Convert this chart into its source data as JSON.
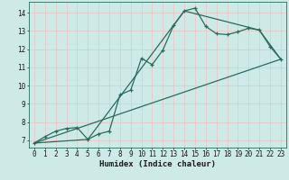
{
  "xlabel": "Humidex (Indice chaleur)",
  "bg_color": "#cdeae7",
  "grid_color_h": "#e8c8c8",
  "grid_color_v": "#e8c8c8",
  "line_color": "#2a6b5e",
  "xlim": [
    -0.5,
    23.5
  ],
  "ylim": [
    6.6,
    14.6
  ],
  "xticks": [
    0,
    1,
    2,
    3,
    4,
    5,
    6,
    7,
    8,
    9,
    10,
    11,
    12,
    13,
    14,
    15,
    16,
    17,
    18,
    19,
    20,
    21,
    22,
    23
  ],
  "yticks": [
    7,
    8,
    9,
    10,
    11,
    12,
    13,
    14
  ],
  "line1_x": [
    0,
    1,
    2,
    3,
    4,
    5,
    6,
    7,
    8,
    9,
    10,
    11,
    12,
    13,
    14,
    15,
    16,
    17,
    18,
    19,
    20,
    21,
    22,
    23
  ],
  "line1_y": [
    6.85,
    7.2,
    7.5,
    7.65,
    7.7,
    7.05,
    7.35,
    7.5,
    9.5,
    9.75,
    11.5,
    11.15,
    11.95,
    13.3,
    14.1,
    14.25,
    13.25,
    12.85,
    12.8,
    12.95,
    13.15,
    13.05,
    12.15,
    11.45
  ],
  "line2_x": [
    0,
    5,
    14,
    21,
    23
  ],
  "line2_y": [
    6.85,
    7.05,
    14.1,
    13.05,
    11.45
  ],
  "line3_x": [
    0,
    23
  ],
  "line3_y": [
    6.85,
    11.45
  ]
}
